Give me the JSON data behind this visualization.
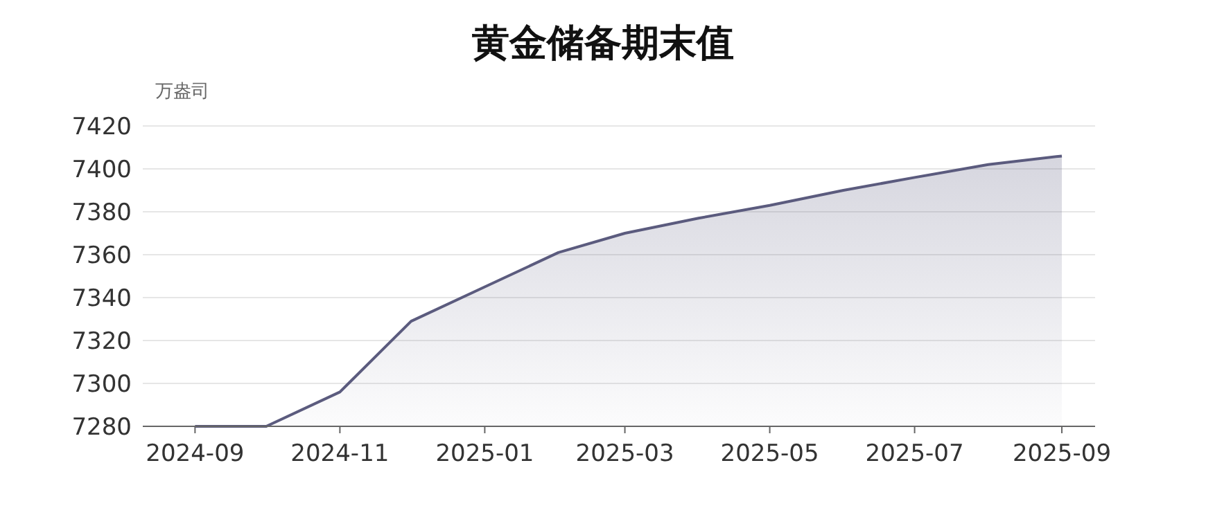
{
  "chart_data": {
    "type": "area",
    "title": "黄金储备期末值",
    "ylabel": "万盎司",
    "x": [
      "2024-09",
      "2024-10",
      "2024-11",
      "2024-12",
      "2025-01",
      "2025-02",
      "2025-03",
      "2025-04",
      "2025-05",
      "2025-06",
      "2025-07",
      "2025-08",
      "2025-09"
    ],
    "values": [
      7280,
      7280,
      7296,
      7329,
      7345,
      7361,
      7370,
      7377,
      7383,
      7390,
      7396,
      7402,
      7406
    ],
    "color": "#5b5b7e",
    "xlim": [
      "2024-08-10",
      "2025-09-15"
    ],
    "xticks": [
      "2024-09",
      "2024-11",
      "2025-01",
      "2025-03",
      "2025-05",
      "2025-07",
      "2025-09"
    ],
    "ylim": [
      7280,
      7420
    ],
    "yticks": [
      7280,
      7300,
      7320,
      7340,
      7360,
      7380,
      7400,
      7420
    ],
    "grid": "y"
  }
}
